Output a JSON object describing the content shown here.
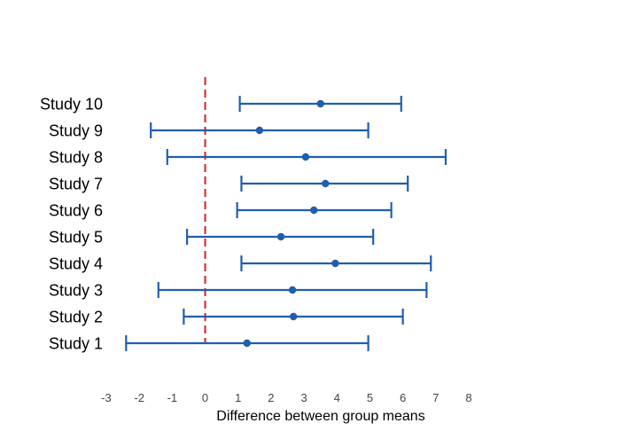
{
  "chart_data": {
    "type": "forest",
    "title": "",
    "xlabel": "Difference between group means",
    "ylabel": "",
    "xlim": [
      -3,
      8
    ],
    "xticks": [
      "-3",
      "-2",
      "-1",
      "0",
      "1",
      "2",
      "3",
      "4",
      "5",
      "6",
      "7",
      "8"
    ],
    "grid": false,
    "reference_line": {
      "x": 0,
      "style": "dashed"
    },
    "studies": [
      {
        "label": "Study 10",
        "estimate": 3.5,
        "lower": 1.05,
        "upper": 5.95
      },
      {
        "label": "Study 9",
        "estimate": 1.65,
        "lower": -1.65,
        "upper": 4.95
      },
      {
        "label": "Study 8",
        "estimate": 3.05,
        "lower": -1.15,
        "upper": 7.3
      },
      {
        "label": "Study 7",
        "estimate": 3.65,
        "lower": 1.1,
        "upper": 6.15
      },
      {
        "label": "Study 6",
        "estimate": 3.3,
        "lower": 0.97,
        "upper": 5.65
      },
      {
        "label": "Study 5",
        "estimate": 2.3,
        "lower": -0.55,
        "upper": 5.1
      },
      {
        "label": "Study 4",
        "estimate": 3.95,
        "lower": 1.1,
        "upper": 6.85
      },
      {
        "label": "Study 3",
        "estimate": 2.65,
        "lower": -1.42,
        "upper": 6.72
      },
      {
        "label": "Study 2",
        "estimate": 2.68,
        "lower": -0.65,
        "upper": 6.0
      },
      {
        "label": "Study 1",
        "estimate": 1.27,
        "lower": -2.4,
        "upper": 4.95
      }
    ],
    "colors": {
      "interval": "#1f5fad",
      "point": "#1f5fad",
      "reference": "#c8373a"
    }
  }
}
